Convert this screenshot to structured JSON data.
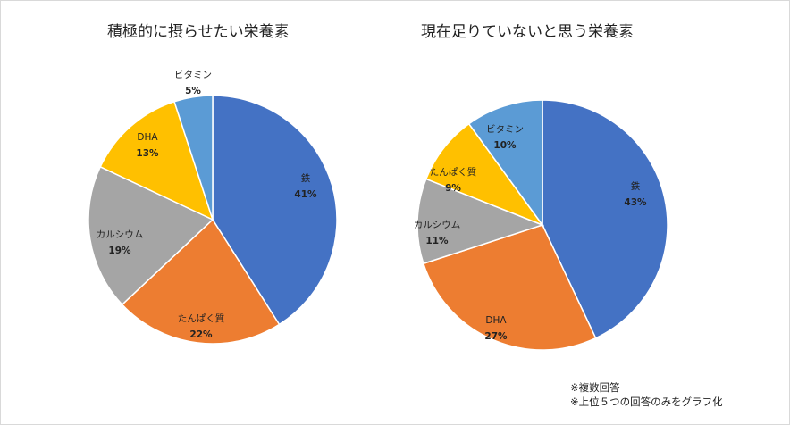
{
  "chart_data": [
    {
      "type": "pie",
      "title": "積極的に摂らせたい栄養素",
      "labels": [
        "鉄",
        "たんぱく質",
        "カルシウム",
        "DHA",
        "ビタミン"
      ],
      "values": [
        41,
        22,
        19,
        13,
        5
      ],
      "percent_labels": [
        "41%",
        "22%",
        "19%",
        "13%",
        "5%"
      ],
      "colors": [
        "#4472C4",
        "#ED7D31",
        "#A5A5A5",
        "#FFC000",
        "#5B9BD5"
      ]
    },
    {
      "type": "pie",
      "title": "現在足りていないと思う栄養素",
      "labels": [
        "鉄",
        "DHA",
        "カルシウム",
        "たんぱく質",
        "ビタミン"
      ],
      "values": [
        43,
        27,
        11,
        9,
        10
      ],
      "percent_labels": [
        "43%",
        "27%",
        "11%",
        "9%",
        "10%"
      ],
      "colors": [
        "#4472C4",
        "#ED7D31",
        "#A5A5A5",
        "#FFC000",
        "#5B9BD5"
      ]
    }
  ],
  "notes": {
    "line1": "※複数回答",
    "line2": "※上位５つの回答のみをグラフ化"
  }
}
